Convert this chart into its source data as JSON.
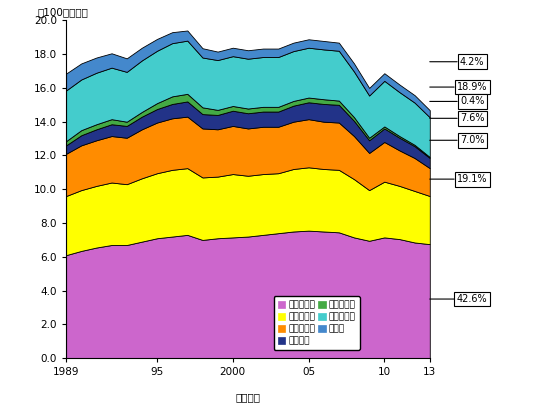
{
  "ylabel": "（100万トン）",
  "xlabel": "（年度）",
  "ylim": [
    0,
    20.0
  ],
  "yticks": [
    0.0,
    2.0,
    4.0,
    6.0,
    8.0,
    10.0,
    12.0,
    14.0,
    16.0,
    18.0,
    20.0
  ],
  "years": [
    1989,
    1990,
    1991,
    1992,
    1993,
    1994,
    1995,
    1996,
    1997,
    1998,
    1999,
    2000,
    2001,
    2002,
    2003,
    2004,
    2005,
    2006,
    2007,
    2008,
    2009,
    2010,
    2011,
    2012,
    2013
  ],
  "xtick_labels": [
    "1989",
    "95",
    "2000",
    "05",
    "10",
    "13"
  ],
  "xtick_positions": [
    1989,
    1995,
    2000,
    2005,
    2010,
    2013
  ],
  "series": {
    "katei": [
      6.1,
      6.35,
      6.55,
      6.7,
      6.7,
      6.9,
      7.1,
      7.2,
      7.3,
      7.0,
      7.1,
      7.15,
      7.2,
      7.3,
      7.4,
      7.5,
      7.55,
      7.5,
      7.45,
      7.15,
      6.95,
      7.15,
      7.05,
      6.85,
      6.75
    ],
    "ippan": [
      3.5,
      3.6,
      3.65,
      3.7,
      3.6,
      3.75,
      3.85,
      3.95,
      3.95,
      3.7,
      3.65,
      3.75,
      3.6,
      3.6,
      3.55,
      3.7,
      3.75,
      3.7,
      3.7,
      3.45,
      3.0,
      3.3,
      3.15,
      3.05,
      2.85
    ],
    "toshi": [
      2.5,
      2.65,
      2.7,
      2.75,
      2.75,
      2.9,
      3.0,
      3.05,
      3.05,
      2.9,
      2.8,
      2.85,
      2.8,
      2.8,
      2.75,
      2.8,
      2.85,
      2.8,
      2.8,
      2.55,
      2.2,
      2.35,
      2.1,
      1.95,
      1.65
    ],
    "jidosha": [
      0.5,
      0.6,
      0.65,
      0.7,
      0.7,
      0.75,
      0.8,
      0.85,
      0.9,
      0.85,
      0.85,
      0.9,
      0.9,
      0.9,
      0.9,
      0.95,
      1.0,
      1.05,
      1.05,
      0.9,
      0.75,
      0.8,
      0.75,
      0.7,
      0.6
    ],
    "tetsu": [
      0.25,
      0.3,
      0.3,
      0.3,
      0.25,
      0.28,
      0.35,
      0.45,
      0.45,
      0.4,
      0.3,
      0.28,
      0.28,
      0.28,
      0.28,
      0.28,
      0.28,
      0.28,
      0.25,
      0.22,
      0.15,
      0.12,
      0.1,
      0.08,
      0.06
    ],
    "kagaku": [
      3.0,
      3.0,
      3.05,
      3.05,
      2.95,
      3.05,
      3.1,
      3.15,
      3.15,
      2.95,
      2.95,
      2.95,
      2.95,
      2.95,
      2.95,
      2.95,
      2.95,
      2.95,
      2.95,
      2.7,
      2.5,
      2.7,
      2.6,
      2.5,
      2.35
    ],
    "denki": [
      1.0,
      0.95,
      0.9,
      0.85,
      0.8,
      0.75,
      0.7,
      0.65,
      0.6,
      0.55,
      0.5,
      0.5,
      0.5,
      0.5,
      0.5,
      0.5,
      0.5,
      0.5,
      0.48,
      0.48,
      0.45,
      0.45,
      0.45,
      0.44,
      0.42
    ]
  },
  "colors": {
    "katei": "#cc66cc",
    "ippan": "#ffff00",
    "toshi": "#ff8c00",
    "jidosha": "#223388",
    "tetsu": "#44aa44",
    "kagaku": "#44cccc",
    "denki": "#4488cc"
  },
  "legend_labels": [
    [
      "家庭業務用",
      "一般工業用"
    ],
    [
      "都市ガス用",
      "自動車用"
    ],
    [
      "大口鉄鉰用",
      "化学原料用"
    ],
    [
      "電力用",
      ""
    ]
  ],
  "legend_colors": [
    [
      "katei",
      "ippan"
    ],
    [
      "toshi",
      "jidosha"
    ],
    [
      "tetsu",
      "kagaku"
    ],
    [
      "denki",
      ""
    ]
  ],
  "pct_info": [
    [
      "4.2%",
      17.55
    ],
    [
      "18.9%",
      16.05
    ],
    [
      "0.4%",
      15.2
    ],
    [
      "7.6%",
      14.2
    ],
    [
      "7.0%",
      12.9
    ],
    [
      "19.1%",
      10.6
    ],
    [
      "42.6%",
      3.5
    ]
  ]
}
